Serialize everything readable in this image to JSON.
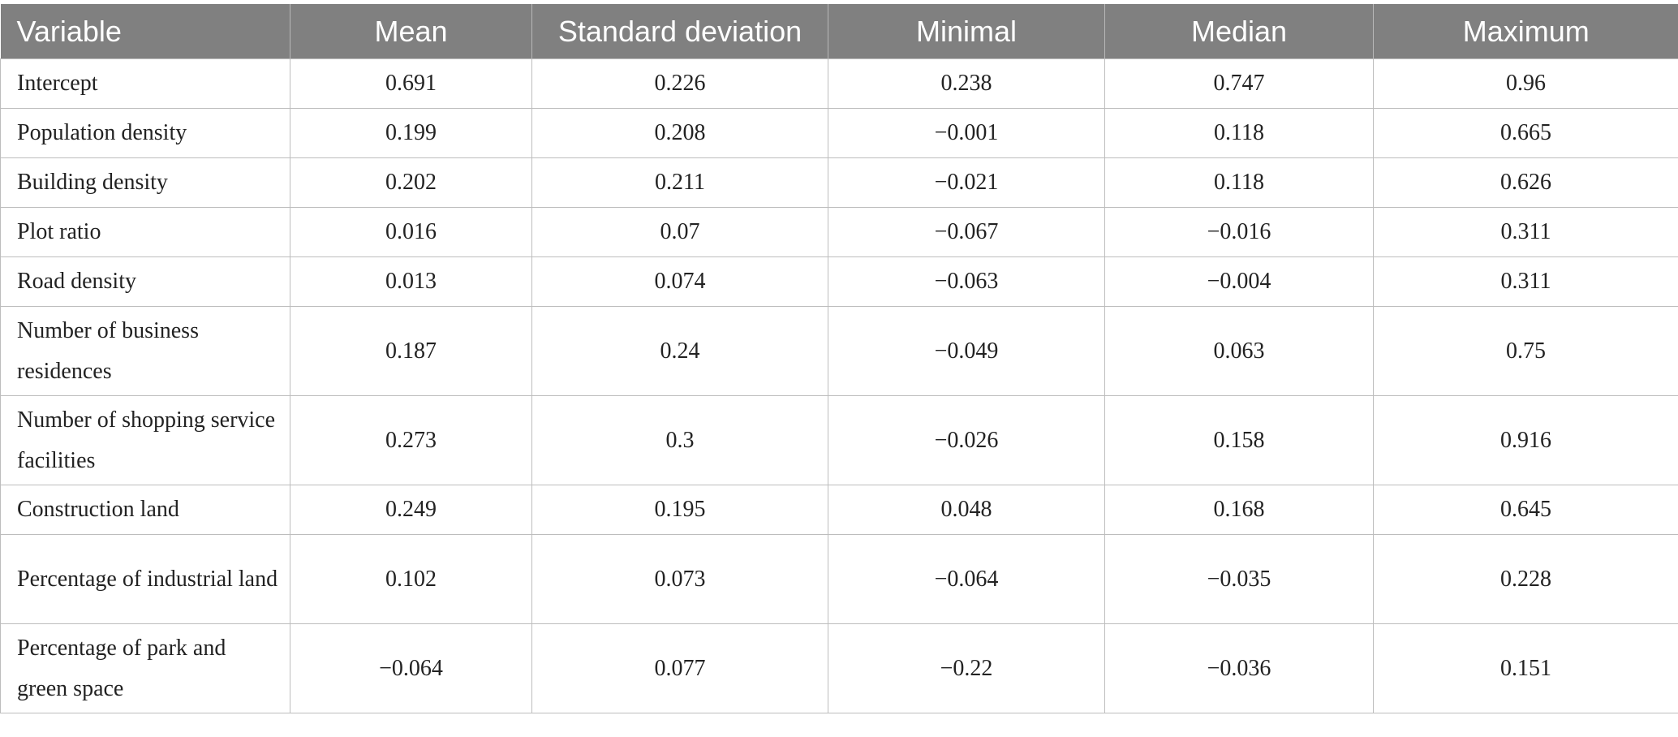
{
  "table": {
    "headers": [
      "Variable",
      "Mean",
      "Standard deviation",
      "Minimal",
      "Median",
      "Maximum"
    ],
    "rows": [
      {
        "variable": "Intercept",
        "mean": "0.691",
        "sd": "0.226",
        "min": "0.238",
        "median": "0.747",
        "max": "0.96"
      },
      {
        "variable": "Population density",
        "mean": "0.199",
        "sd": "0.208",
        "min": "−0.001",
        "median": "0.118",
        "max": "0.665"
      },
      {
        "variable": "Building density",
        "mean": "0.202",
        "sd": "0.211",
        "min": "−0.021",
        "median": "0.118",
        "max": "0.626"
      },
      {
        "variable": "Plot ratio",
        "mean": "0.016",
        "sd": "0.07",
        "min": "−0.067",
        "median": "−0.016",
        "max": "0.311"
      },
      {
        "variable": "Road density",
        "mean": "0.013",
        "sd": "0.074",
        "min": "−0.063",
        "median": "−0.004",
        "max": "0.311"
      },
      {
        "variable": "Number of business residences",
        "mean": "0.187",
        "sd": "0.24",
        "min": "−0.049",
        "median": "0.063",
        "max": "0.75"
      },
      {
        "variable": "Number of shopping service facilities",
        "mean": "0.273",
        "sd": "0.3",
        "min": "−0.026",
        "median": "0.158",
        "max": "0.916"
      },
      {
        "variable": "Construction land",
        "mean": "0.249",
        "sd": "0.195",
        "min": "0.048",
        "median": "0.168",
        "max": "0.645"
      },
      {
        "variable": "Percentage of industrial land",
        "mean": "0.102",
        "sd": "0.073",
        "min": "−0.064",
        "median": "−0.035",
        "max": "0.228"
      },
      {
        "variable": "Percentage of park and green space",
        "mean": "−0.064",
        "sd": "0.077",
        "min": "−0.22",
        "median": "−0.036",
        "max": "0.151"
      }
    ]
  }
}
